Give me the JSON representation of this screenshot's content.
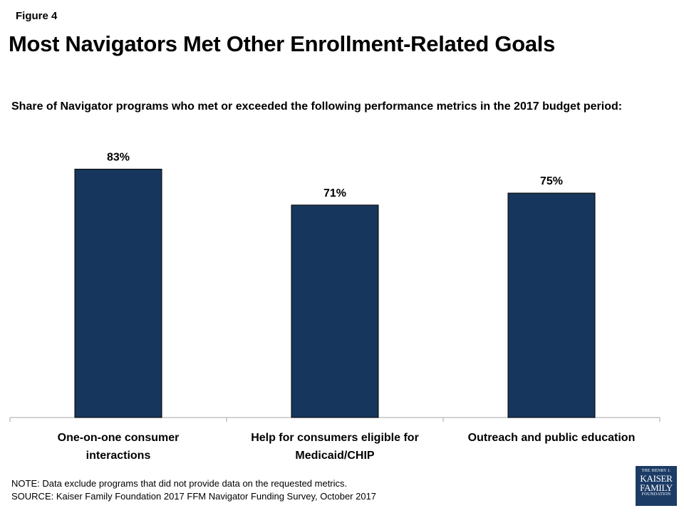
{
  "figure_label": "Figure 4",
  "title": "Most Navigators Met Other Enrollment-Related Goals",
  "subtitle": "Share of Navigator programs who met or exceeded the following performance metrics in the 2017 budget period:",
  "chart_data": {
    "type": "bar",
    "categories": [
      [
        "One-on-one consumer",
        "interactions"
      ],
      [
        "Help for consumers eligible for",
        "Medicaid/CHIP"
      ],
      [
        "Outreach and public education"
      ]
    ],
    "values": [
      83,
      71,
      75
    ],
    "value_labels": [
      "83%",
      "71%",
      "75%"
    ],
    "ylim": [
      0,
      100
    ],
    "bar_color": "#17365d",
    "grid": false,
    "legend": "none"
  },
  "note": "NOTE:  Data exclude programs that did not provide data on the requested metrics.",
  "source": "SOURCE: Kaiser Family Foundation 2017 FFM Navigator Funding Survey, October 2017",
  "logo": {
    "line1": "THE HENRY J.",
    "line2": "KAISER",
    "line3": "FAMILY",
    "line4": "FOUNDATION"
  }
}
